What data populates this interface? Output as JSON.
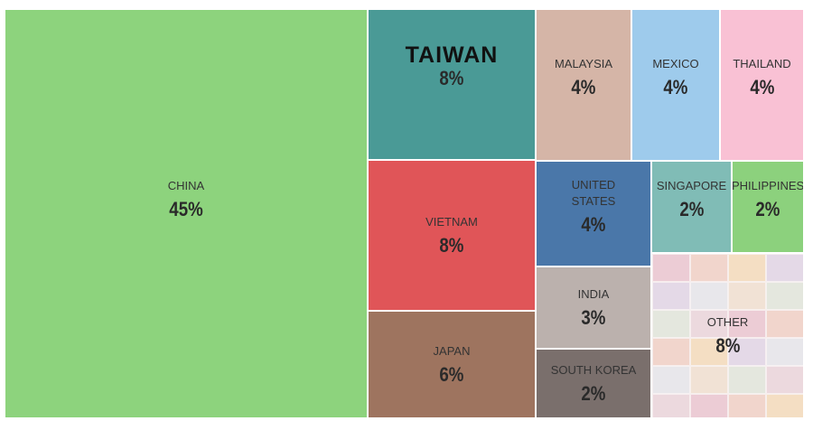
{
  "chart_data": {
    "type": "treemap",
    "categories": [
      "CHINA",
      "TAIWAN",
      "VIETNAM",
      "JAPAN",
      "MALAYSIA",
      "MEXICO",
      "THAILAND",
      "UNITED STATES",
      "SINGAPORE",
      "PHILIPPINES",
      "INDIA",
      "SOUTH KOREA",
      "OTHER"
    ],
    "values": [
      45,
      8,
      8,
      6,
      4,
      4,
      4,
      4,
      2,
      2,
      3,
      2,
      8
    ],
    "value_labels": [
      "45%",
      "8%",
      "8%",
      "6%",
      "4%",
      "4%",
      "4%",
      "4%",
      "2%",
      "2%",
      "3%",
      "2%",
      "8%"
    ],
    "colors": [
      "#8dd37d",
      "#4a9a96",
      "#e05558",
      "#9e745f",
      "#d5b5a7",
      "#9ecbec",
      "#f9c1d4",
      "#4a77a9",
      "#80bcb6",
      "#8cd17d",
      "#bbb1ad",
      "#7a6f6c",
      "#f3e6e6"
    ]
  }
}
